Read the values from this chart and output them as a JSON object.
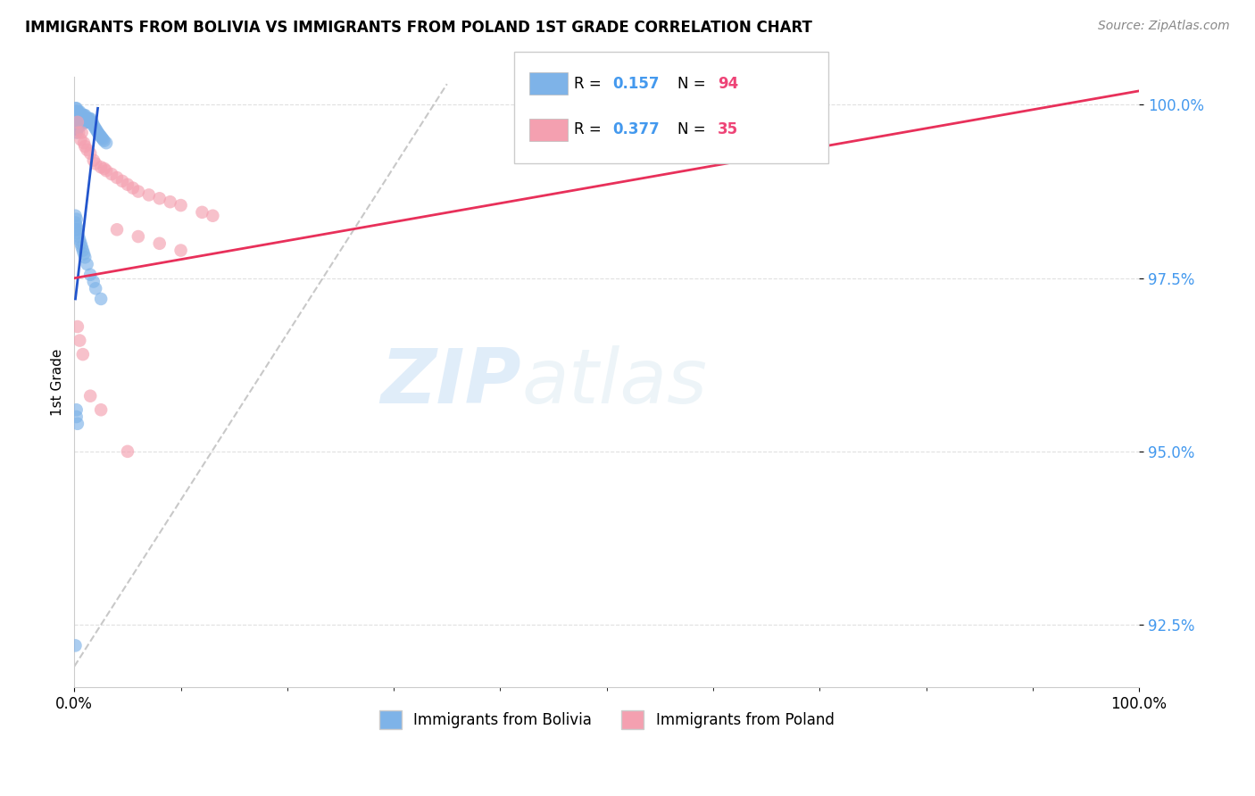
{
  "title": "IMMIGRANTS FROM BOLIVIA VS IMMIGRANTS FROM POLAND 1ST GRADE CORRELATION CHART",
  "source_text": "Source: ZipAtlas.com",
  "ylabel": "1st Grade",
  "xlim": [
    0.0,
    1.0
  ],
  "ylim": [
    0.916,
    1.004
  ],
  "ytick_labels": [
    "92.5%",
    "95.0%",
    "97.5%",
    "100.0%"
  ],
  "ytick_values": [
    0.925,
    0.95,
    0.975,
    1.0
  ],
  "xtick_labels": [
    "0.0%",
    "100.0%"
  ],
  "xtick_values": [
    0.0,
    1.0
  ],
  "bolivia_color": "#7EB3E8",
  "poland_color": "#F4A0B0",
  "bolivia_line_color": "#2255CC",
  "poland_line_color": "#E8305A",
  "diagonal_color": "#BBBBBB",
  "R_bolivia": 0.157,
  "N_bolivia": 94,
  "R_poland": 0.377,
  "N_poland": 35,
  "bolivia_scatter_x": [
    0.001,
    0.001,
    0.001,
    0.001,
    0.001,
    0.001,
    0.001,
    0.002,
    0.002,
    0.002,
    0.002,
    0.002,
    0.002,
    0.002,
    0.002,
    0.003,
    0.003,
    0.003,
    0.003,
    0.003,
    0.003,
    0.004,
    0.004,
    0.004,
    0.004,
    0.004,
    0.005,
    0.005,
    0.005,
    0.005,
    0.006,
    0.006,
    0.006,
    0.006,
    0.007,
    0.007,
    0.007,
    0.008,
    0.008,
    0.008,
    0.009,
    0.009,
    0.009,
    0.01,
    0.01,
    0.01,
    0.011,
    0.011,
    0.012,
    0.012,
    0.013,
    0.013,
    0.014,
    0.014,
    0.015,
    0.015,
    0.016,
    0.017,
    0.018,
    0.019,
    0.02,
    0.021,
    0.022,
    0.023,
    0.024,
    0.025,
    0.026,
    0.027,
    0.028,
    0.03,
    0.001,
    0.001,
    0.001,
    0.002,
    0.002,
    0.003,
    0.003,
    0.004,
    0.005,
    0.006,
    0.007,
    0.008,
    0.009,
    0.01,
    0.012,
    0.015,
    0.018,
    0.02,
    0.025,
    0.001,
    0.002,
    0.002,
    0.003
  ],
  "bolivia_scatter_y": [
    0.9995,
    0.999,
    0.9985,
    0.998,
    0.9975,
    0.997,
    0.9965,
    0.9995,
    0.999,
    0.9985,
    0.998,
    0.9975,
    0.997,
    0.9965,
    0.996,
    0.999,
    0.9985,
    0.998,
    0.9975,
    0.997,
    0.9965,
    0.999,
    0.9985,
    0.998,
    0.9975,
    0.997,
    0.999,
    0.9985,
    0.998,
    0.9975,
    0.9985,
    0.998,
    0.9975,
    0.997,
    0.9985,
    0.998,
    0.9975,
    0.9985,
    0.998,
    0.9975,
    0.9985,
    0.998,
    0.9975,
    0.9985,
    0.998,
    0.9975,
    0.998,
    0.9975,
    0.998,
    0.9975,
    0.998,
    0.9975,
    0.998,
    0.9975,
    0.998,
    0.9975,
    0.9975,
    0.9975,
    0.997,
    0.9968,
    0.9965,
    0.9963,
    0.996,
    0.9958,
    0.9956,
    0.9954,
    0.9952,
    0.995,
    0.9948,
    0.9945,
    0.984,
    0.983,
    0.982,
    0.9835,
    0.9825,
    0.982,
    0.9815,
    0.981,
    0.9805,
    0.98,
    0.9795,
    0.979,
    0.9785,
    0.978,
    0.977,
    0.9755,
    0.9745,
    0.9735,
    0.972,
    0.922,
    0.956,
    0.955,
    0.954
  ],
  "poland_scatter_x": [
    0.003,
    0.004,
    0.006,
    0.007,
    0.009,
    0.01,
    0.012,
    0.015,
    0.018,
    0.02,
    0.025,
    0.028,
    0.03,
    0.035,
    0.04,
    0.045,
    0.05,
    0.055,
    0.06,
    0.07,
    0.08,
    0.09,
    0.1,
    0.12,
    0.13,
    0.04,
    0.06,
    0.08,
    0.1,
    0.003,
    0.005,
    0.008,
    0.015,
    0.025,
    0.05
  ],
  "poland_scatter_y": [
    0.9975,
    0.996,
    0.995,
    0.996,
    0.9945,
    0.994,
    0.9935,
    0.993,
    0.992,
    0.9915,
    0.991,
    0.9908,
    0.9905,
    0.99,
    0.9895,
    0.989,
    0.9885,
    0.988,
    0.9875,
    0.987,
    0.9865,
    0.986,
    0.9855,
    0.9845,
    0.984,
    0.982,
    0.981,
    0.98,
    0.979,
    0.968,
    0.966,
    0.964,
    0.958,
    0.956,
    0.95
  ],
  "watermark_zip": "ZIP",
  "watermark_atlas": "atlas",
  "background_color": "#FFFFFF",
  "grid_color": "#DDDDDD"
}
